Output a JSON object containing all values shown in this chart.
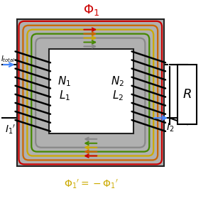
{
  "bg_color": "#ffffff",
  "core_gray": "#b0b0b0",
  "core_edge": "#222222",
  "flux_colors": [
    "#cc0000",
    "#cc6600",
    "#ccaa00",
    "#448800",
    "#888888"
  ],
  "label_N1": "$N_1$",
  "label_L1": "$L_1$",
  "label_N2": "$N_2$",
  "label_L2": "$L_2$",
  "label_R": "$R$",
  "label_Phi1": "$\\Phi_1$",
  "label_Phi1prime": "$\\Phi_1{}^{\\prime} = -\\Phi_1{}^{\\prime}$",
  "label_I1prime": "$I_1{}^{\\prime}$",
  "label_I2": "$I_2$",
  "label_Itotal": "$I_{total}$",
  "phi1_color": "#cc0000",
  "phi1p_color": "#ccaa00",
  "arrow_color": "#4488ff",
  "black": "#000000",
  "white": "#ffffff"
}
